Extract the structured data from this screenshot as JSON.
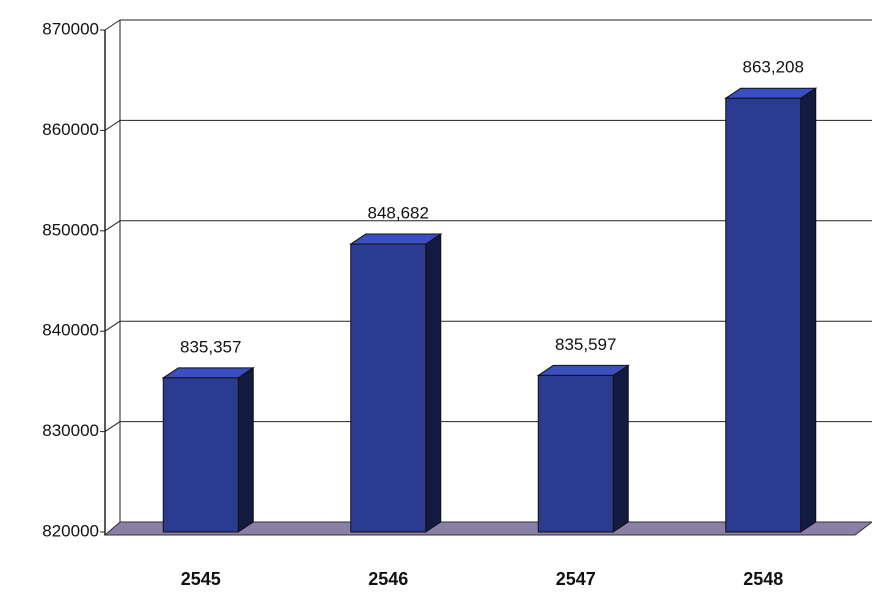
{
  "chart_data": {
    "type": "bar3d",
    "categories": [
      "2545",
      "2546",
      "2547",
      "2548"
    ],
    "values": [
      835357,
      848682,
      835597,
      863208
    ],
    "value_labels": [
      "835,357",
      "848,682",
      "835,597",
      "863,208"
    ],
    "color": "#2b3b8f",
    "ylim": [
      820000,
      870000
    ],
    "yticks": [
      820000,
      830000,
      840000,
      850000,
      860000,
      870000
    ],
    "grid": true
  }
}
